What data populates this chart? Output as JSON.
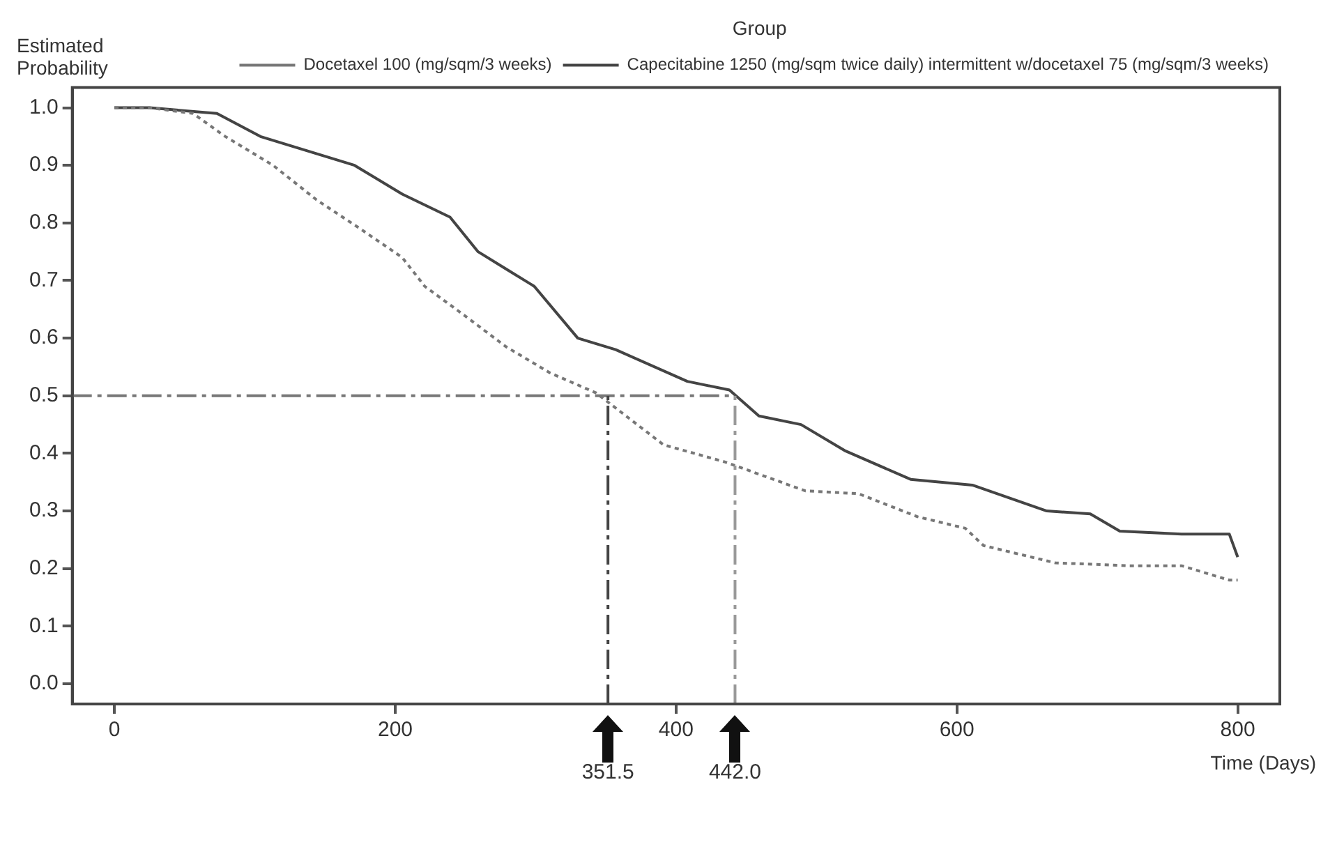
{
  "chart_data": {
    "type": "line",
    "ylabel": "Estimated Probability",
    "xlabel": "Time (Days)",
    "legend_title": "Group",
    "legend": "top right",
    "grid": false,
    "marker": "none",
    "xlim": [
      -30,
      830
    ],
    "xticks": [
      0,
      200,
      400,
      600,
      800
    ],
    "ylim": [
      -0.035,
      1.035
    ],
    "yticks": [
      {
        "value": 0,
        "label": "0.0"
      },
      {
        "value": 0.1,
        "label": "0.1"
      },
      {
        "value": 0.2,
        "label": "0.2"
      },
      {
        "value": 0.3,
        "label": "0.3"
      },
      {
        "value": 0.4,
        "label": "0.4"
      },
      {
        "value": 0.5,
        "label": "0.5"
      },
      {
        "value": 0.6,
        "label": "0.6"
      },
      {
        "value": 0.7,
        "label": "0.7"
      },
      {
        "value": 0.8,
        "label": "0.8"
      },
      {
        "value": 0.9,
        "label": "0.9"
      },
      {
        "value": 1,
        "label": "1.0"
      }
    ],
    "series": [
      {
        "name": "Docetaxel 100 (mg/sqm/3 weeks)",
        "color": "#777777",
        "line_style": "dashed",
        "x": [
          0,
          25,
          56,
          79,
          113,
          144,
          175,
          205,
          221,
          249,
          279,
          310,
          343,
          391,
          435,
          492,
          530,
          572,
          606,
          619,
          670,
          723,
          760,
          794,
          800
        ],
        "values": [
          1.0,
          1.0,
          0.99,
          0.95,
          0.9,
          0.84,
          0.79,
          0.74,
          0.69,
          0.64,
          0.585,
          0.54,
          0.505,
          0.415,
          0.385,
          0.335,
          0.33,
          0.29,
          0.27,
          0.24,
          0.21,
          0.205,
          0.205,
          0.18,
          0.18
        ]
      },
      {
        "name": "Capecitabine 1250 (mg/sqm twice daily) intermittent w/docetaxel 75 (mg/sqm/3 weeks)",
        "color": "#444444",
        "line_style": "solid",
        "x": [
          0,
          25,
          73,
          104,
          171,
          205,
          239,
          259,
          279,
          299,
          330,
          357,
          408,
          438,
          459,
          489,
          520,
          567,
          611,
          664,
          695,
          716,
          760,
          794,
          800
        ],
        "values": [
          1.0,
          1.0,
          0.99,
          0.95,
          0.9,
          0.85,
          0.81,
          0.75,
          0.72,
          0.69,
          0.6,
          0.58,
          0.525,
          0.51,
          0.465,
          0.45,
          0.405,
          0.355,
          0.345,
          0.3,
          0.295,
          0.265,
          0.26,
          0.26,
          0.22
        ]
      }
    ],
    "ref_lines": [
      {
        "axis": "y",
        "value": 0.5,
        "color": "#777777",
        "line_style": "dashdot"
      },
      {
        "axis": "x",
        "value": 351.5,
        "label": "351.5",
        "color": "#444444",
        "line_style": "dashdot"
      },
      {
        "axis": "x",
        "value": 442.0,
        "label": "442.0",
        "color": "#999999",
        "line_style": "dashdot"
      }
    ]
  }
}
